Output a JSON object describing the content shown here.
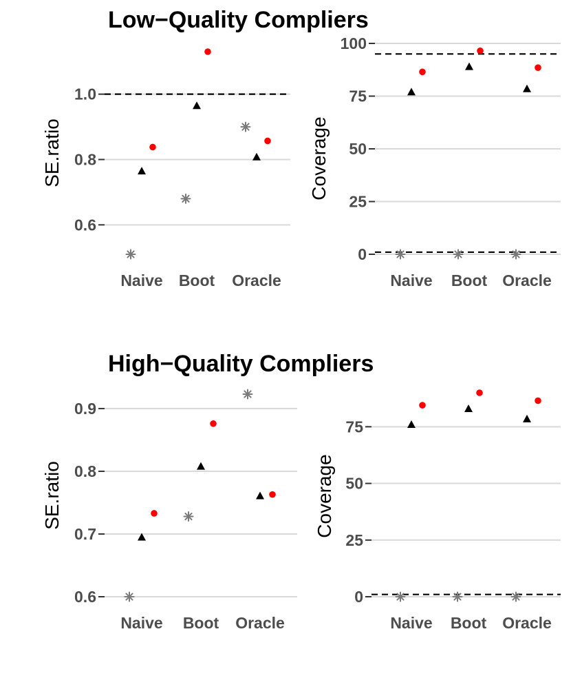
{
  "sections": [
    {
      "title": "Low−Quality Compliers"
    },
    {
      "title": "High−Quality Compliers"
    }
  ],
  "colors": {
    "naive_marker": "#000000",
    "boot_marker": "#ff0000",
    "asterisk": "#7a7a7a",
    "grid": "#d9d9d9",
    "refline": "#000000",
    "tick_text": "#4d4d4d"
  },
  "chart_data": [
    {
      "id": "low-se",
      "type": "scatter",
      "section": "Low−Quality Compliers",
      "ylabel": "SE.ratio",
      "xlabel": "",
      "categories": [
        "Naive",
        "Boot",
        "Oracle"
      ],
      "ylim": [
        0.51,
        1.13
      ],
      "yticks": [
        0.6,
        0.8,
        1.0
      ],
      "ytick_labels": [
        "0.6",
        "0.8",
        "1.0"
      ],
      "reference_lines": [
        1.0
      ],
      "series": [
        {
          "name": "asterisk",
          "marker": "asterisk",
          "values": [
            0.51,
            0.68,
            0.9
          ]
        },
        {
          "name": "triangle",
          "marker": "triangle",
          "values": [
            0.765,
            0.965,
            0.808
          ]
        },
        {
          "name": "dot",
          "marker": "dot",
          "values": [
            0.838,
            1.13,
            0.857
          ]
        }
      ]
    },
    {
      "id": "low-cov",
      "type": "scatter",
      "section": "Low−Quality Compliers",
      "ylabel": "Coverage",
      "xlabel": "",
      "categories": [
        "Naive",
        "Boot",
        "Oracle"
      ],
      "ylim": [
        0,
        100
      ],
      "yticks": [
        0,
        25,
        50,
        75,
        100
      ],
      "ytick_labels": [
        "0",
        "25",
        "50",
        "75",
        "100"
      ],
      "reference_lines": [
        95,
        1
      ],
      "series": [
        {
          "name": "asterisk",
          "marker": "asterisk",
          "values": [
            0,
            0,
            0
          ]
        },
        {
          "name": "triangle",
          "marker": "triangle",
          "values": [
            77,
            89,
            78.5
          ]
        },
        {
          "name": "dot",
          "marker": "dot",
          "values": [
            86.5,
            96.5,
            88.5
          ]
        }
      ]
    },
    {
      "id": "high-se",
      "type": "scatter",
      "section": "High−Quality Compliers",
      "ylabel": "SE.ratio",
      "xlabel": "",
      "categories": [
        "Naive",
        "Boot",
        "Oracle"
      ],
      "ylim": [
        0.6,
        0.923
      ],
      "yticks": [
        0.6,
        0.7,
        0.8,
        0.9
      ],
      "ytick_labels": [
        "0.6",
        "0.7",
        "0.8",
        "0.9"
      ],
      "reference_lines": [],
      "series": [
        {
          "name": "asterisk",
          "marker": "asterisk",
          "values": [
            0.6,
            0.728,
            0.923
          ]
        },
        {
          "name": "triangle",
          "marker": "triangle",
          "values": [
            0.695,
            0.808,
            0.761
          ]
        },
        {
          "name": "dot",
          "marker": "dot",
          "values": [
            0.733,
            0.876,
            0.763
          ]
        }
      ]
    },
    {
      "id": "high-cov",
      "type": "scatter",
      "section": "High−Quality Compliers",
      "ylabel": "Coverage",
      "xlabel": "",
      "categories": [
        "Naive",
        "Boot",
        "Oracle"
      ],
      "ylim": [
        0,
        90
      ],
      "yticks": [
        0,
        25,
        50,
        75
      ],
      "ytick_labels": [
        "0",
        "25",
        "50",
        "75"
      ],
      "reference_lines": [
        1
      ],
      "series": [
        {
          "name": "asterisk",
          "marker": "asterisk",
          "values": [
            0,
            0,
            0
          ]
        },
        {
          "name": "triangle",
          "marker": "triangle",
          "values": [
            76,
            83,
            78.5
          ]
        },
        {
          "name": "dot",
          "marker": "dot",
          "values": [
            84.5,
            90,
            86.5
          ]
        }
      ]
    }
  ]
}
